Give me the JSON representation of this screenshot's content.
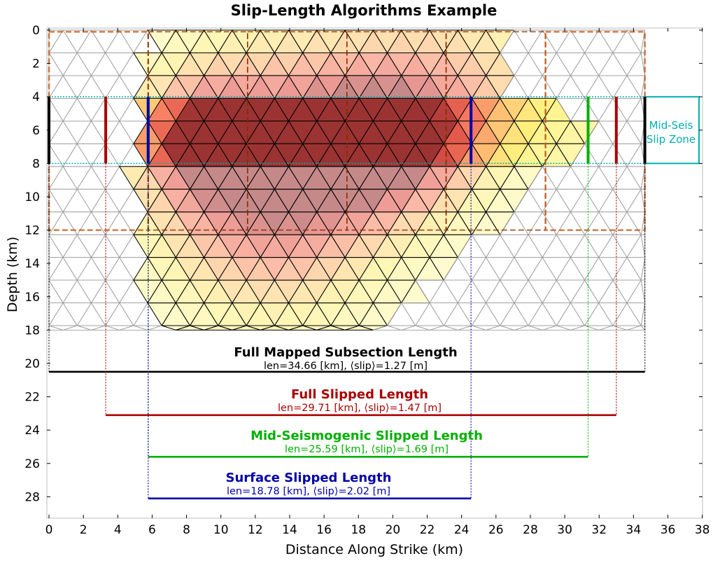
{
  "chart_data": {
    "type": "heatmap",
    "title": "Slip-Length Algorithms Example",
    "xlabel": "Distance Along Strike (km)",
    "ylabel": "Depth (km)",
    "xlim": [
      0,
      38
    ],
    "ylim": [
      29.5,
      0
    ],
    "xticks": [
      0,
      2,
      4,
      6,
      8,
      10,
      12,
      14,
      16,
      18,
      20,
      22,
      24,
      26,
      28,
      30,
      32,
      34,
      36,
      38
    ],
    "yticks": [
      0,
      2,
      4,
      6,
      8,
      10,
      12,
      14,
      16,
      18,
      20,
      22,
      24,
      26,
      28
    ],
    "grid": false,
    "mesh": {
      "x_range": [
        0,
        34.66
      ],
      "depth_range": [
        0,
        18
      ],
      "element_size_km": 1.64
    },
    "mid_seismogenic_zone": {
      "top": 4,
      "bottom": 8,
      "label": [
        "Mid-Seis",
        "Slip Zone"
      ]
    },
    "subsections": [
      {
        "x_start": 0,
        "x_end": 5.77,
        "depth_top": 0.1,
        "depth_bottom": 12
      },
      {
        "x_start": 5.77,
        "x_end": 11.55,
        "depth_top": 0.1,
        "depth_bottom": 12
      },
      {
        "x_start": 11.55,
        "x_end": 17.33,
        "depth_top": 0.1,
        "depth_bottom": 12
      },
      {
        "x_start": 17.33,
        "x_end": 23.1,
        "depth_top": 0.1,
        "depth_bottom": 12
      },
      {
        "x_start": 23.1,
        "x_end": 28.88,
        "depth_top": 0.1,
        "depth_bottom": 12
      },
      {
        "x_start": 28.88,
        "x_end": 34.66,
        "depth_top": 0.1,
        "depth_bottom": 12
      }
    ],
    "slip_patches": [
      {
        "cx": 13.0,
        "cz": 9.0,
        "rx": 8.2,
        "rz": 9.0,
        "peak": 1.0
      },
      {
        "cx": 19.5,
        "cz": 7.0,
        "rx": 6.5,
        "rz": 5.0,
        "peak": 1.0
      },
      {
        "cx": 9.0,
        "cz": 6.5,
        "rx": 4.5,
        "rz": 4.5,
        "peak": 0.7
      },
      {
        "cx": 23.0,
        "cz": 3.0,
        "rx": 9.0,
        "rz": 6.0,
        "peak": 0.45
      }
    ],
    "lengths": [
      {
        "name": "Full Mapped Subsection Length",
        "label": "len=34.66 [km], ⟨slip⟩=1.27 [m]",
        "x_start": 0,
        "x_end": 34.66,
        "depth": 20.5,
        "length_km": 34.66,
        "mean_slip_m": 1.27,
        "color": "#000000"
      },
      {
        "name": "Full Slipped Length",
        "label": "len=29.71 [km], ⟨slip⟩=1.47 [m]",
        "x_start": 3.3,
        "x_end": 33.0,
        "depth": 23.1,
        "length_km": 29.71,
        "mean_slip_m": 1.47,
        "color": "#aa0000"
      },
      {
        "name": "Mid-Seismogenic Slipped Length",
        "label": "len=25.59 [km], ⟨slip⟩=1.69 [m]",
        "x_start": 5.77,
        "x_end": 31.36,
        "depth": 25.6,
        "length_km": 25.59,
        "mean_slip_m": 1.69,
        "color": "#00b000"
      },
      {
        "name": "Surface Slipped Length",
        "label": "len=18.78 [km], ⟨slip⟩=2.02 [m]",
        "x_start": 5.77,
        "x_end": 24.55,
        "depth": 28.1,
        "length_km": 18.78,
        "mean_slip_m": 2.02,
        "color": "#0000aa"
      }
    ],
    "colors": {
      "mesh_gray": "#a0a0a0",
      "mesh_black": "#000000",
      "subsection_orange": "#c86428",
      "zone_teal": "#00b0b0",
      "subsection_divider": "#8a2a00"
    }
  }
}
